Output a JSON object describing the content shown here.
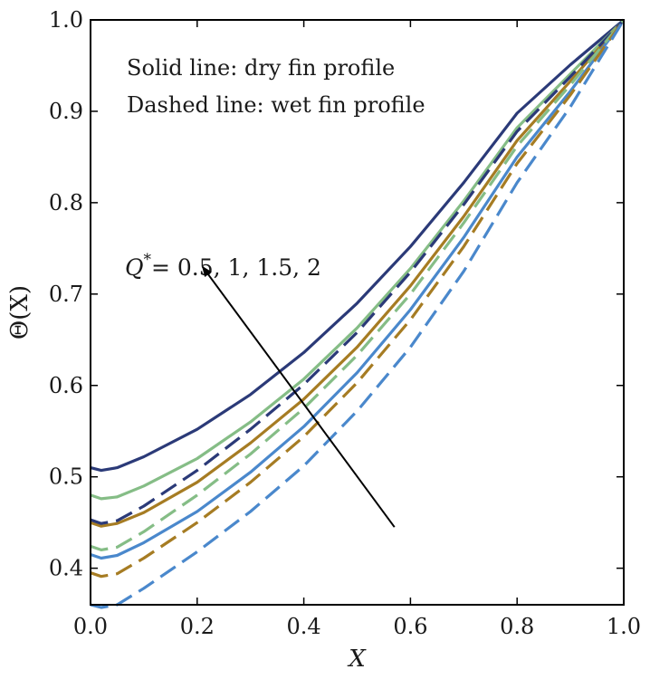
{
  "chart_data": {
    "type": "line",
    "xlabel": "X",
    "ylabel": "Θ(X)",
    "xlim": [
      0.0,
      1.0
    ],
    "ylim": [
      0.36,
      1.0
    ],
    "xticks": [
      "0.0",
      "0.2",
      "0.4",
      "0.6",
      "0.8",
      "1.0"
    ],
    "yticks": [
      "0.4",
      "0.5",
      "0.6",
      "0.7",
      "0.8",
      "0.9",
      "1.0"
    ],
    "grid": false,
    "annotations": {
      "note_solid": "Solid line: dry fin profile",
      "note_dashed": "Dashed line: wet fin profile",
      "q_label_main": "Q",
      "q_label_sup": "*",
      "q_label_values": "= 0.5, 1, 1.5, 2",
      "arrow_from": [
        0.57,
        0.445
      ],
      "arrow_to": [
        0.21,
        0.73
      ]
    },
    "series": [
      {
        "style": "solid",
        "color": "#2b3a78",
        "points": [
          [
            0.0,
            0.51
          ],
          [
            0.02,
            0.507
          ],
          [
            0.05,
            0.51
          ],
          [
            0.1,
            0.522
          ],
          [
            0.2,
            0.552
          ],
          [
            0.3,
            0.59
          ],
          [
            0.4,
            0.636
          ],
          [
            0.5,
            0.69
          ],
          [
            0.6,
            0.752
          ],
          [
            0.7,
            0.822
          ],
          [
            0.8,
            0.898
          ],
          [
            0.9,
            0.951
          ],
          [
            1.0,
            1.0
          ]
        ]
      },
      {
        "style": "solid",
        "color": "#85bd86",
        "points": [
          [
            0.0,
            0.48
          ],
          [
            0.02,
            0.476
          ],
          [
            0.05,
            0.478
          ],
          [
            0.1,
            0.49
          ],
          [
            0.2,
            0.52
          ],
          [
            0.3,
            0.56
          ],
          [
            0.4,
            0.607
          ],
          [
            0.5,
            0.663
          ],
          [
            0.6,
            0.728
          ],
          [
            0.7,
            0.802
          ],
          [
            0.8,
            0.882
          ],
          [
            0.9,
            0.941
          ],
          [
            1.0,
            1.0
          ]
        ]
      },
      {
        "style": "solid",
        "color": "#a67c23",
        "points": [
          [
            0.0,
            0.45
          ],
          [
            0.02,
            0.446
          ],
          [
            0.05,
            0.449
          ],
          [
            0.1,
            0.461
          ],
          [
            0.2,
            0.494
          ],
          [
            0.3,
            0.537
          ],
          [
            0.4,
            0.585
          ],
          [
            0.5,
            0.642
          ],
          [
            0.6,
            0.709
          ],
          [
            0.7,
            0.785
          ],
          [
            0.8,
            0.868
          ],
          [
            0.9,
            0.933
          ],
          [
            1.0,
            1.0
          ]
        ]
      },
      {
        "style": "solid",
        "color": "#4a88cc",
        "points": [
          [
            0.0,
            0.415
          ],
          [
            0.02,
            0.411
          ],
          [
            0.05,
            0.414
          ],
          [
            0.1,
            0.428
          ],
          [
            0.2,
            0.462
          ],
          [
            0.3,
            0.505
          ],
          [
            0.4,
            0.555
          ],
          [
            0.5,
            0.614
          ],
          [
            0.6,
            0.683
          ],
          [
            0.7,
            0.762
          ],
          [
            0.8,
            0.85
          ],
          [
            0.9,
            0.922
          ],
          [
            1.0,
            1.0
          ]
        ]
      },
      {
        "style": "dashed",
        "color": "#2b3a78",
        "points": [
          [
            0.0,
            0.453
          ],
          [
            0.02,
            0.449
          ],
          [
            0.05,
            0.452
          ],
          [
            0.1,
            0.468
          ],
          [
            0.2,
            0.507
          ],
          [
            0.3,
            0.552
          ],
          [
            0.4,
            0.601
          ],
          [
            0.5,
            0.658
          ],
          [
            0.6,
            0.724
          ],
          [
            0.7,
            0.798
          ],
          [
            0.8,
            0.878
          ],
          [
            0.9,
            0.938
          ],
          [
            1.0,
            1.0
          ]
        ]
      },
      {
        "style": "dashed",
        "color": "#85bd86",
        "points": [
          [
            0.0,
            0.424
          ],
          [
            0.02,
            0.42
          ],
          [
            0.05,
            0.423
          ],
          [
            0.1,
            0.44
          ],
          [
            0.2,
            0.48
          ],
          [
            0.3,
            0.525
          ],
          [
            0.4,
            0.575
          ],
          [
            0.5,
            0.633
          ],
          [
            0.6,
            0.7
          ],
          [
            0.7,
            0.778
          ],
          [
            0.8,
            0.862
          ],
          [
            0.9,
            0.929
          ],
          [
            1.0,
            1.0
          ]
        ]
      },
      {
        "style": "dashed",
        "color": "#a67c23",
        "points": [
          [
            0.0,
            0.395
          ],
          [
            0.02,
            0.391
          ],
          [
            0.05,
            0.394
          ],
          [
            0.1,
            0.411
          ],
          [
            0.2,
            0.45
          ],
          [
            0.3,
            0.494
          ],
          [
            0.4,
            0.544
          ],
          [
            0.5,
            0.603
          ],
          [
            0.6,
            0.672
          ],
          [
            0.7,
            0.752
          ],
          [
            0.8,
            0.843
          ],
          [
            0.9,
            0.918
          ],
          [
            1.0,
            1.0
          ]
        ]
      },
      {
        "style": "dashed",
        "color": "#4a88cc",
        "points": [
          [
            0.0,
            0.36
          ],
          [
            0.02,
            0.357
          ],
          [
            0.05,
            0.36
          ],
          [
            0.1,
            0.378
          ],
          [
            0.2,
            0.418
          ],
          [
            0.3,
            0.462
          ],
          [
            0.4,
            0.512
          ],
          [
            0.5,
            0.572
          ],
          [
            0.6,
            0.642
          ],
          [
            0.7,
            0.725
          ],
          [
            0.8,
            0.822
          ],
          [
            0.9,
            0.905
          ],
          [
            1.0,
            1.0
          ]
        ]
      }
    ]
  }
}
